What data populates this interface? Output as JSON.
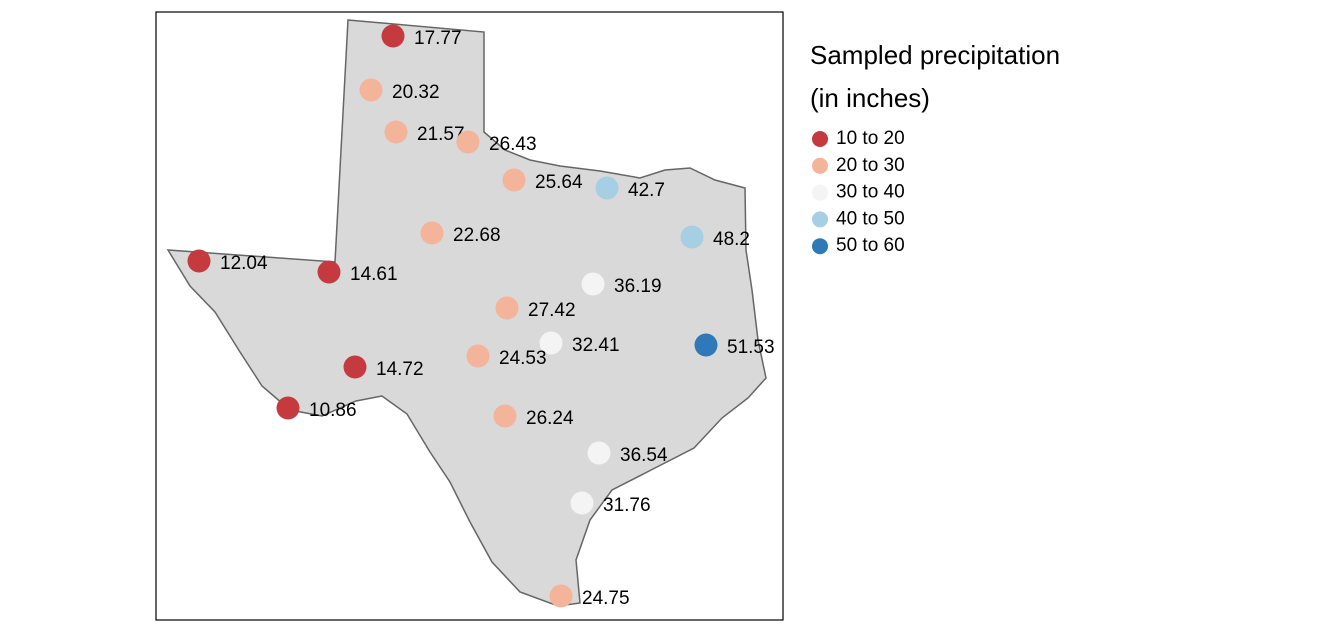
{
  "map": {
    "legend": {
      "title_lines": [
        "Sampled precipitation",
        "(in inches)"
      ],
      "classes": [
        {
          "label": "10 to 20",
          "min": 10,
          "max": 20,
          "color": "#c43a3f"
        },
        {
          "label": "20 to 30",
          "min": 20,
          "max": 30,
          "color": "#f4b49a"
        },
        {
          "label": "30 to 40",
          "min": 30,
          "max": 40,
          "color": "#f4f4f4"
        },
        {
          "label": "40 to 50",
          "min": 40,
          "max": 50,
          "color": "#a6cfe4"
        },
        {
          "label": "50 to 60",
          "min": 50,
          "max": 60,
          "color": "#2f79b8"
        }
      ]
    },
    "points": [
      17.77,
      20.32,
      21.57,
      26.43,
      25.64,
      42.7,
      22.68,
      48.2,
      12.04,
      14.61,
      36.19,
      27.42,
      32.41,
      51.53,
      24.53,
      14.72,
      10.86,
      26.24,
      36.54,
      31.76,
      24.75
    ]
  }
}
